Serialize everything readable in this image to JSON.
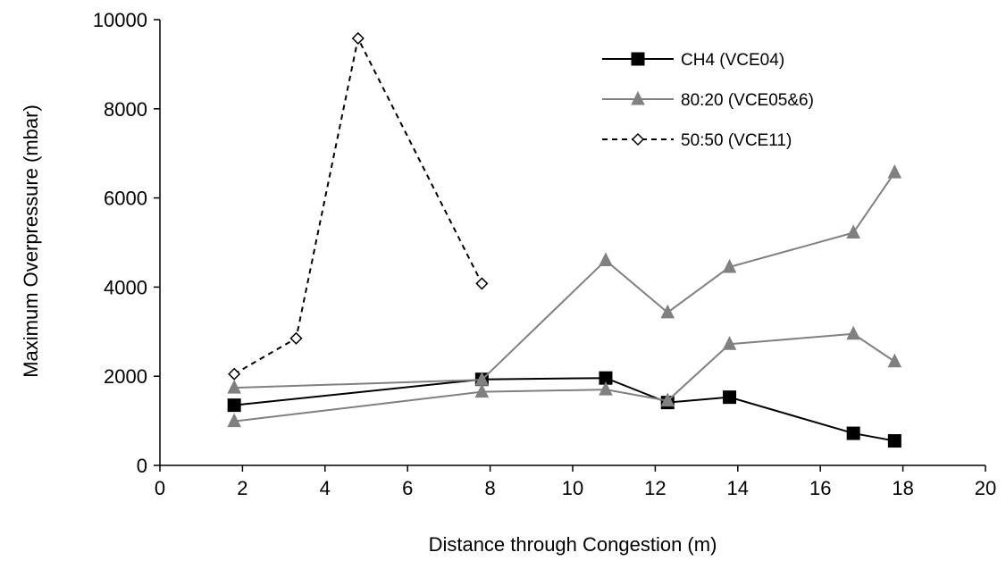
{
  "chart_data": {
    "type": "line",
    "title": "",
    "xlabel": "Distance through Congestion (m)",
    "ylabel": "Maximum Overpressure  (mbar)",
    "xlim": [
      0,
      20
    ],
    "ylim": [
      0,
      10000
    ],
    "xticks": [
      0,
      2,
      4,
      6,
      8,
      10,
      12,
      14,
      16,
      18,
      20
    ],
    "yticks": [
      0,
      2000,
      4000,
      6000,
      8000,
      10000
    ],
    "grid": false,
    "legend_position": "top-right",
    "series": [
      {
        "name": "CH4 (VCE04)",
        "color": "#000000",
        "marker": "square",
        "line": "solid",
        "segments": [
          [
            [
              1.8,
              1350
            ],
            [
              7.8,
              1930
            ],
            [
              10.8,
              1960
            ],
            [
              12.3,
              1410
            ],
            [
              13.8,
              1530
            ],
            [
              16.8,
              720
            ],
            [
              17.8,
              550
            ]
          ]
        ]
      },
      {
        "name": "80:20 (VCE05&6)",
        "color": "#808080",
        "marker": "triangle",
        "line": "solid",
        "segments": [
          [
            [
              1.8,
              1740
            ],
            [
              7.8,
              1920
            ],
            [
              10.8,
              4600
            ],
            [
              12.3,
              3430
            ],
            [
              13.8,
              4450
            ],
            [
              16.8,
              5220
            ],
            [
              17.8,
              6570
            ]
          ],
          [
            [
              1.8,
              990
            ],
            [
              7.8,
              1650
            ],
            [
              10.8,
              1700
            ],
            [
              12.3,
              1450
            ],
            [
              13.8,
              2720
            ],
            [
              16.8,
              2950
            ],
            [
              17.8,
              2330
            ]
          ]
        ]
      },
      {
        "name": "50:50 (VCE11)",
        "color": "#000000",
        "marker": "diamond-open",
        "line": "dashed",
        "segments": [
          [
            [
              1.8,
              2050
            ],
            [
              3.3,
              2850
            ],
            [
              4.8,
              9580
            ],
            [
              7.8,
              4080
            ]
          ]
        ]
      }
    ]
  }
}
